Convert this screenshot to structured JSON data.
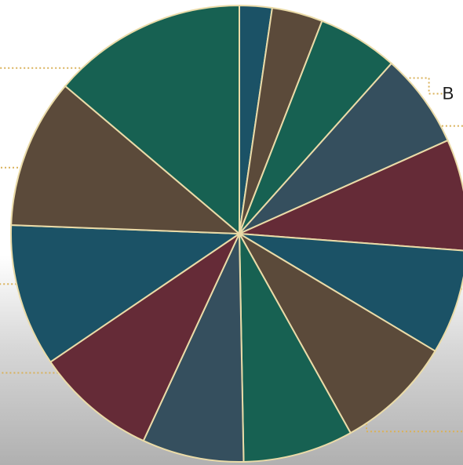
{
  "chart_data": {
    "type": "pie",
    "title": "",
    "start_angle_deg": 0,
    "direction": "clockwise",
    "slices": [
      {
        "label": "",
        "value": 2.3,
        "color": "#1b5266"
      },
      {
        "label": "",
        "value": 3.6,
        "color": "#5b4a3a"
      },
      {
        "label": "B",
        "value": 5.7,
        "color": "#176152"
      },
      {
        "label": "",
        "value": 6.7,
        "color": "#354f5e"
      },
      {
        "label": "",
        "value": 7.9,
        "color": "#652b37"
      },
      {
        "label": "",
        "value": 7.4,
        "color": "#1b5266"
      },
      {
        "label": "",
        "value": 8.3,
        "color": "#5b4a3a"
      },
      {
        "label": "",
        "value": 7.8,
        "color": "#176152"
      },
      {
        "label": "",
        "value": 7.2,
        "color": "#354f5e"
      },
      {
        "label": "",
        "value": 8.6,
        "color": "#652b37"
      },
      {
        "label": "",
        "value": 10.1,
        "color": "#1b5266"
      },
      {
        "label": "",
        "value": 10.6,
        "color": "#5b4a3a"
      },
      {
        "label": "",
        "value": 13.8,
        "color": "#176152"
      }
    ]
  }
}
